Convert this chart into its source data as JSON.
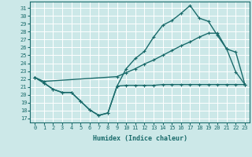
{
  "xlabel": "Humidex (Indice chaleur)",
  "bg_color": "#cce8e8",
  "line_color": "#1a6b6b",
  "grid_color": "#ffffff",
  "xlim": [
    -0.5,
    23.5
  ],
  "ylim": [
    16.5,
    31.8
  ],
  "yticks": [
    17,
    18,
    19,
    20,
    21,
    22,
    23,
    24,
    25,
    26,
    27,
    28,
    29,
    30,
    31
  ],
  "xticks": [
    0,
    1,
    2,
    3,
    4,
    5,
    6,
    7,
    8,
    9,
    10,
    11,
    12,
    13,
    14,
    15,
    16,
    17,
    18,
    19,
    20,
    21,
    22,
    23
  ],
  "line1_x": [
    0,
    1,
    2,
    3,
    4,
    5,
    6,
    7,
    8,
    9,
    10,
    11,
    12,
    13,
    14,
    15,
    16,
    17,
    18,
    19,
    20,
    21,
    22,
    23
  ],
  "line1_y": [
    22.2,
    21.5,
    20.7,
    20.3,
    20.3,
    19.2,
    18.1,
    17.4,
    17.7,
    21.1,
    21.2,
    21.2,
    21.2,
    21.2,
    21.3,
    21.3,
    21.3,
    21.3,
    21.3,
    21.3,
    21.3,
    21.3,
    21.3,
    21.3
  ],
  "line2_x": [
    0,
    1,
    2,
    3,
    4,
    5,
    6,
    7,
    8,
    9,
    10,
    11,
    12,
    13,
    14,
    15,
    16,
    17,
    18,
    19,
    20,
    21,
    22,
    23
  ],
  "line2_y": [
    22.2,
    21.5,
    20.7,
    20.3,
    20.3,
    19.2,
    18.1,
    17.4,
    17.7,
    21.1,
    23.3,
    24.6,
    25.5,
    27.3,
    28.8,
    29.4,
    30.3,
    31.3,
    29.7,
    29.3,
    27.5,
    25.8,
    22.9,
    21.3
  ],
  "line3_x": [
    0,
    1,
    9,
    10,
    11,
    12,
    13,
    14,
    15,
    16,
    17,
    18,
    19,
    20,
    21,
    22,
    23
  ],
  "line3_y": [
    22.2,
    21.7,
    22.3,
    22.8,
    23.3,
    23.9,
    24.4,
    25.0,
    25.6,
    26.2,
    26.7,
    27.3,
    27.8,
    27.8,
    25.8,
    25.4,
    21.3
  ],
  "linewidth": 1.0,
  "markersize": 3,
  "tick_fontsize": 5,
  "xlabel_fontsize": 6
}
